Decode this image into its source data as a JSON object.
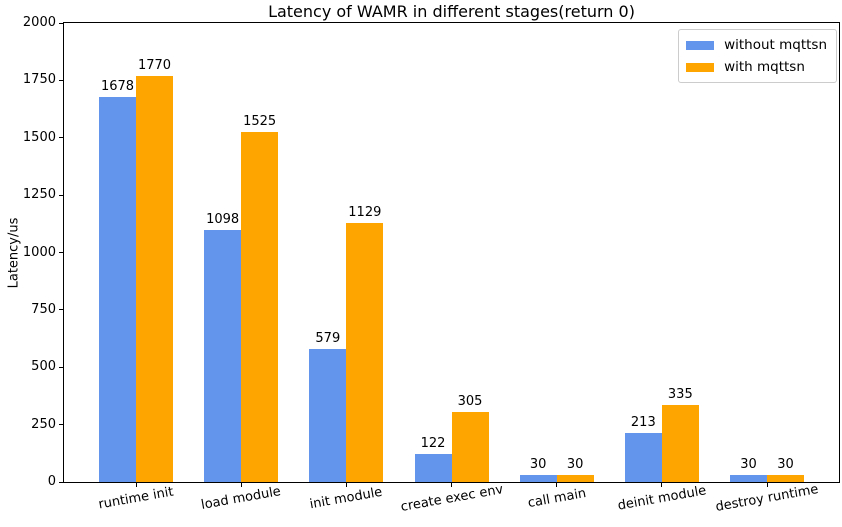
{
  "chart_data": {
    "type": "bar",
    "title": "Latency of WAMR in different stages(return 0)",
    "xlabel": "",
    "ylabel": "Latency/us",
    "categories": [
      "runtime init",
      "load module",
      "init module",
      "create exec env",
      "call main",
      "deinit module",
      "destroy runtime"
    ],
    "series": [
      {
        "name": "without mqttsn",
        "color": "#6495ED",
        "values": [
          1678,
          1098,
          579,
          122,
          30,
          213,
          30
        ]
      },
      {
        "name": "with mqttsn",
        "color": "#FFA500",
        "values": [
          1770,
          1525,
          1129,
          305,
          30,
          335,
          30
        ]
      }
    ],
    "ylim": [
      0,
      2000
    ],
    "yticks": [
      0,
      250,
      500,
      750,
      1000,
      1250,
      1500,
      1750,
      2000
    ],
    "grid": false,
    "bar_value_labels": true,
    "legend_position": "upper right",
    "xtick_rotation_deg": 10
  }
}
